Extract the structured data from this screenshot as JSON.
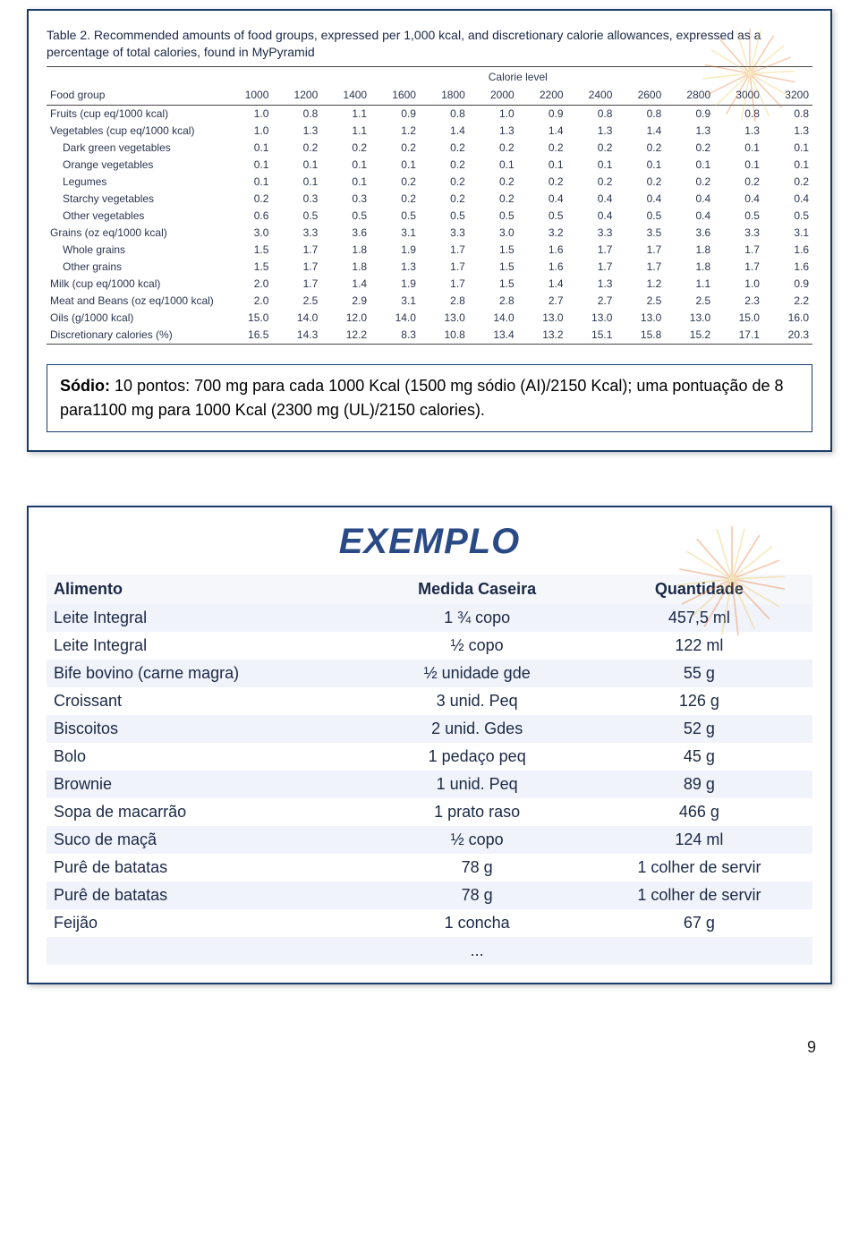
{
  "table1": {
    "title_prefix": "Table 2.",
    "title_rest": " Recommended amounts of food groups, expressed per 1,000 kcal, and discretionary calorie allowances, expressed as a percentage of total calories, found in MyPyramid",
    "calorie_level_label": "Calorie level",
    "foodgroup_header": "Food group",
    "levels": [
      "1000",
      "1200",
      "1400",
      "1600",
      "1800",
      "2000",
      "2200",
      "2400",
      "2600",
      "2800",
      "3000",
      "3200"
    ],
    "rows": [
      {
        "label": "Fruits (cup eq/1000 kcal)",
        "indent": false,
        "v": [
          "1.0",
          "0.8",
          "1.1",
          "0.9",
          "0.8",
          "1.0",
          "0.9",
          "0.8",
          "0.8",
          "0.9",
          "0.8",
          "0.8"
        ]
      },
      {
        "label": "Vegetables (cup eq/1000 kcal)",
        "indent": false,
        "v": [
          "1.0",
          "1.3",
          "1.1",
          "1.2",
          "1.4",
          "1.3",
          "1.4",
          "1.3",
          "1.4",
          "1.3",
          "1.3",
          "1.3"
        ]
      },
      {
        "label": "Dark green vegetables",
        "indent": true,
        "v": [
          "0.1",
          "0.2",
          "0.2",
          "0.2",
          "0.2",
          "0.2",
          "0.2",
          "0.2",
          "0.2",
          "0.2",
          "0.1",
          "0.1"
        ]
      },
      {
        "label": "Orange vegetables",
        "indent": true,
        "v": [
          "0.1",
          "0.1",
          "0.1",
          "0.1",
          "0.2",
          "0.1",
          "0.1",
          "0.1",
          "0.1",
          "0.1",
          "0.1",
          "0.1"
        ]
      },
      {
        "label": "Legumes",
        "indent": true,
        "v": [
          "0.1",
          "0.1",
          "0.1",
          "0.2",
          "0.2",
          "0.2",
          "0.2",
          "0.2",
          "0.2",
          "0.2",
          "0.2",
          "0.2"
        ]
      },
      {
        "label": "Starchy vegetables",
        "indent": true,
        "v": [
          "0.2",
          "0.3",
          "0.3",
          "0.2",
          "0.2",
          "0.2",
          "0.4",
          "0.4",
          "0.4",
          "0.4",
          "0.4",
          "0.4"
        ]
      },
      {
        "label": "Other vegetables",
        "indent": true,
        "v": [
          "0.6",
          "0.5",
          "0.5",
          "0.5",
          "0.5",
          "0.5",
          "0.5",
          "0.4",
          "0.5",
          "0.4",
          "0.5",
          "0.5"
        ]
      },
      {
        "label": "Grains (oz eq/1000 kcal)",
        "indent": false,
        "v": [
          "3.0",
          "3.3",
          "3.6",
          "3.1",
          "3.3",
          "3.0",
          "3.2",
          "3.3",
          "3.5",
          "3.6",
          "3.3",
          "3.1"
        ]
      },
      {
        "label": "Whole grains",
        "indent": true,
        "v": [
          "1.5",
          "1.7",
          "1.8",
          "1.9",
          "1.7",
          "1.5",
          "1.6",
          "1.7",
          "1.7",
          "1.8",
          "1.7",
          "1.6"
        ]
      },
      {
        "label": "Other grains",
        "indent": true,
        "v": [
          "1.5",
          "1.7",
          "1.8",
          "1.3",
          "1.7",
          "1.5",
          "1.6",
          "1.7",
          "1.7",
          "1.8",
          "1.7",
          "1.6"
        ]
      },
      {
        "label": "Milk (cup eq/1000 kcal)",
        "indent": false,
        "v": [
          "2.0",
          "1.7",
          "1.4",
          "1.9",
          "1.7",
          "1.5",
          "1.4",
          "1.3",
          "1.2",
          "1.1",
          "1.0",
          "0.9"
        ]
      },
      {
        "label": "Meat and Beans (oz eq/1000 kcal)",
        "indent": false,
        "v": [
          "2.0",
          "2.5",
          "2.9",
          "3.1",
          "2.8",
          "2.8",
          "2.7",
          "2.7",
          "2.5",
          "2.5",
          "2.3",
          "2.2"
        ]
      },
      {
        "label": "Oils (g/1000 kcal)",
        "indent": false,
        "v": [
          "15.0",
          "14.0",
          "12.0",
          "14.0",
          "13.0",
          "14.0",
          "13.0",
          "13.0",
          "13.0",
          "13.0",
          "15.0",
          "16.0"
        ]
      },
      {
        "label": "Discretionary calories (%)",
        "indent": false,
        "v": [
          "16.5",
          "14.3",
          "12.2",
          "8.3",
          "10.8",
          "13.4",
          "13.2",
          "15.1",
          "15.8",
          "15.2",
          "17.1",
          "20.3"
        ]
      }
    ]
  },
  "note": {
    "bold": "Sódio: ",
    "text": "10 pontos: 700 mg para cada 1000 Kcal (1500 mg sódio (AI)/2150 Kcal); uma pontuação de 8 para1100 mg para 1000 Kcal (2300 mg (UL)/2150 calories)."
  },
  "table2": {
    "title": "EXEMPLO",
    "columns": [
      "Alimento",
      "Medida Caseira",
      "Quantidade"
    ],
    "rows": [
      [
        "Leite Integral",
        "1 ¾ copo",
        "457,5 ml"
      ],
      [
        "Leite Integral",
        "½ copo",
        "122 ml"
      ],
      [
        "Bife bovino (carne magra)",
        "½ unidade gde",
        "55 g"
      ],
      [
        "Croissant",
        "3 unid. Peq",
        "126 g"
      ],
      [
        "Biscoitos",
        "2 unid. Gdes",
        "52 g"
      ],
      [
        "Bolo",
        "1 pedaço peq",
        "45 g"
      ],
      [
        "Brownie",
        "1 unid. Peq",
        "89 g"
      ],
      [
        "Sopa de macarrão",
        "1 prato raso",
        "466 g"
      ],
      [
        "Suco de maçã",
        "½ copo",
        "124 ml"
      ],
      [
        "Purê de batatas",
        "78 g",
        "1 colher de servir"
      ],
      [
        "Purê de batatas",
        "78 g",
        "1 colher de servir"
      ],
      [
        "Feijão",
        "1 concha",
        "67 g"
      ],
      [
        "",
        "...",
        ""
      ]
    ]
  },
  "page_number": "9"
}
